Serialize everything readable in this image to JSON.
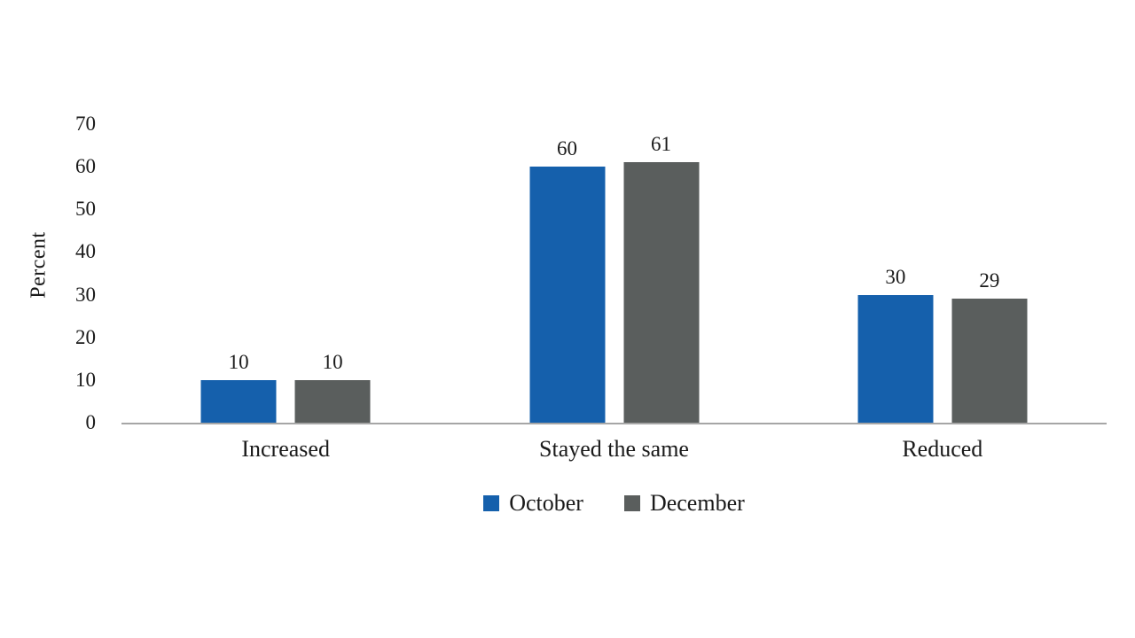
{
  "chart_data": {
    "type": "bar",
    "title": "",
    "xlabel": "",
    "ylabel": "Percent",
    "categories": [
      "Increased",
      "Stayed the same",
      "Reduced"
    ],
    "series": [
      {
        "name": "October",
        "color": "#1560AC",
        "values": [
          10,
          60,
          30
        ]
      },
      {
        "name": "December",
        "color": "#5A5E5D",
        "values": [
          10,
          61,
          29
        ]
      }
    ],
    "ylim": [
      0,
      70
    ],
    "yticks": [
      0,
      10,
      20,
      30,
      40,
      50,
      60,
      70
    ],
    "grid": "off",
    "legend_position": "bottom",
    "axis_line_color": "#A6A6A6",
    "background_color": "#FFFFFF",
    "text_color": "#1A1A1A"
  }
}
